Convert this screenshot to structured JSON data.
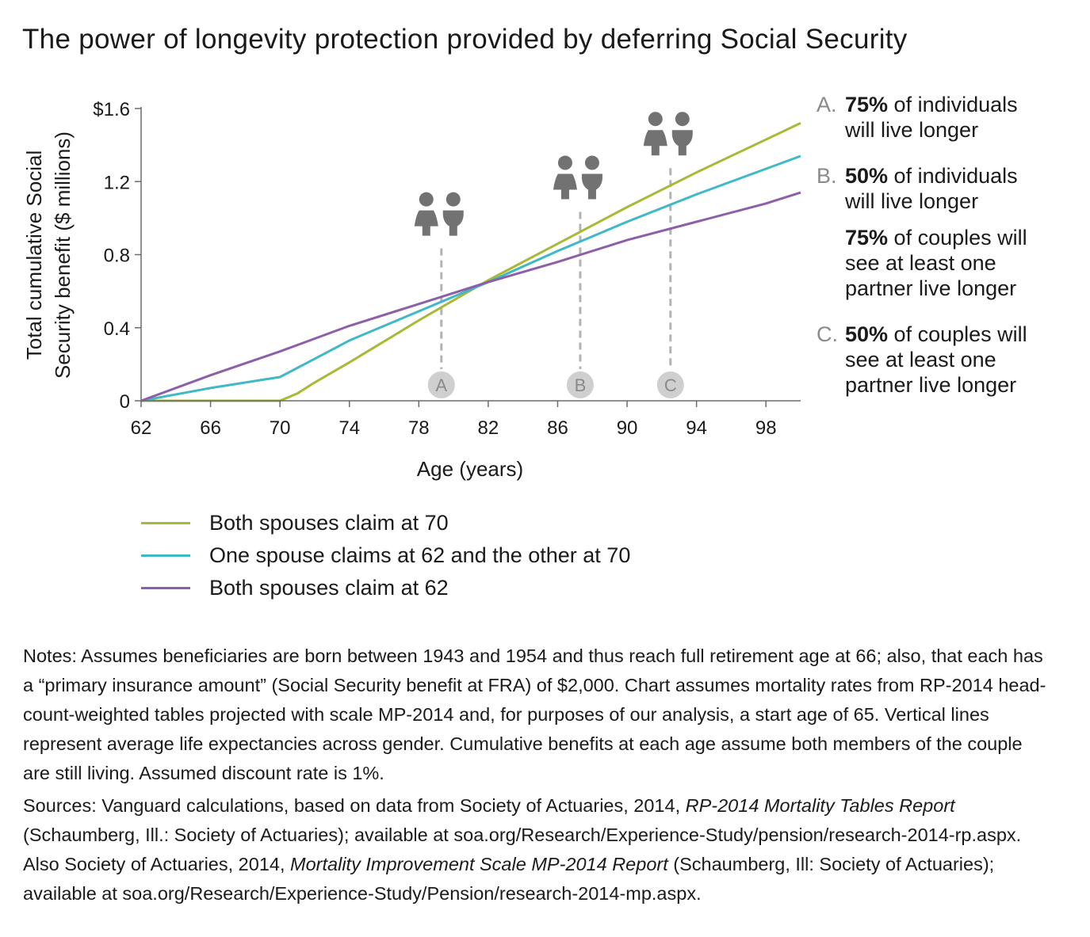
{
  "title": "The power of longevity protection provided by deferring Social Security",
  "colors": {
    "both_70": "#a9b934",
    "one_62_other_70": "#3fb8c7",
    "both_62": "#8d5fa8",
    "marker_gray": "#b3b3b3",
    "icon_gray": "#727272"
  },
  "chart_data": {
    "type": "line",
    "title": "The power of longevity protection provided by deferring Social Security",
    "xlabel": "Age (years)",
    "ylabel": "Total cumulative Social Security benefit ($ millions)",
    "ylabel_lines": [
      "Total cumulative Social",
      "Security benefit ($ millions)"
    ],
    "xlim": [
      62,
      100
    ],
    "ylim": [
      0,
      1.6
    ],
    "x_ticks": [
      62,
      66,
      70,
      74,
      78,
      82,
      86,
      90,
      94,
      98
    ],
    "x_tick_labels": [
      "62",
      "66",
      "70",
      "74",
      "78",
      "82",
      "86",
      "90",
      "94",
      "98"
    ],
    "y_ticks": [
      0,
      0.4,
      0.8,
      1.2,
      1.6
    ],
    "y_tick_labels": [
      "0",
      "0.4",
      "0.8",
      "1.2",
      "$1.6"
    ],
    "grid": false,
    "legend_position": "below",
    "series": [
      {
        "name": "Both spouses claim at 70",
        "color_key": "both_70",
        "points": [
          [
            62,
            0
          ],
          [
            70,
            0
          ],
          [
            71,
            0.04
          ],
          [
            72,
            0.1
          ],
          [
            74,
            0.21
          ],
          [
            78,
            0.44
          ],
          [
            82,
            0.66
          ],
          [
            86,
            0.86
          ],
          [
            90,
            1.06
          ],
          [
            94,
            1.25
          ],
          [
            98,
            1.43
          ],
          [
            100,
            1.52
          ]
        ]
      },
      {
        "name": "One spouse claims at 62 and the other at 70",
        "color_key": "one_62_other_70",
        "points": [
          [
            62,
            0
          ],
          [
            66,
            0.07
          ],
          [
            70,
            0.13
          ],
          [
            71,
            0.18
          ],
          [
            74,
            0.33
          ],
          [
            78,
            0.49
          ],
          [
            82,
            0.65
          ],
          [
            86,
            0.82
          ],
          [
            90,
            0.98
          ],
          [
            94,
            1.13
          ],
          [
            98,
            1.27
          ],
          [
            100,
            1.34
          ]
        ]
      },
      {
        "name": "Both spouses claim at 62",
        "color_key": "both_62",
        "points": [
          [
            62,
            0
          ],
          [
            66,
            0.14
          ],
          [
            70,
            0.27
          ],
          [
            74,
            0.41
          ],
          [
            78,
            0.53
          ],
          [
            82,
            0.65
          ],
          [
            86,
            0.76
          ],
          [
            90,
            0.88
          ],
          [
            94,
            0.98
          ],
          [
            98,
            1.08
          ],
          [
            100,
            1.14
          ]
        ]
      }
    ],
    "markers": [
      {
        "label": "A",
        "age": 79.3,
        "top": 0.86
      },
      {
        "label": "B",
        "age": 87.3,
        "top": 1.06
      },
      {
        "label": "C",
        "age": 92.5,
        "top": 1.3
      }
    ]
  },
  "annotations": [
    {
      "letter": "A.",
      "pct": "75%",
      "lines": [
        "of individuals",
        "will live longer"
      ]
    },
    {
      "letter": "B.",
      "pct": "50%",
      "lines": [
        "of individuals",
        "will live longer"
      ]
    },
    {
      "letter": "",
      "pct": "75%",
      "lines": [
        "of couples will",
        "see at least one",
        "partner live longer"
      ]
    },
    {
      "letter": "C.",
      "pct": "50%",
      "lines": [
        "of couples will",
        "see at least one",
        "partner live longer"
      ]
    }
  ],
  "notes": {
    "label": "Notes:",
    "text": "Assumes beneficiaries are born between 1943 and 1954 and thus reach full retirement age at 66; also, that each has a “primary insurance amount” (Social Security benefit at FRA) of $2,000. Chart assumes mortality rates from RP-2014 head-count-weighted tables projected with scale MP-2014 and, for purposes of our analysis, a start age of 65. Vertical lines represent average life expectancies across gender. Cumulative benefits at each age assume both members of the couple are still living. Assumed discount rate is 1%."
  },
  "sources": {
    "label": "Sources:",
    "part1": "Vanguard calculations, based on data from Society of Actuaries, 2014,",
    "italic1": "RP-2014 Mortality Tables Report",
    "part2": "(Schaumberg, Ill.: Society of Actuaries); available at soa.org/Research/Experience-Study/pension/research-2014-rp.aspx. Also Society of Actuaries, 2014,",
    "italic2": "Mortality Improvement Scale MP-2014 Report",
    "part3": "(Schaumberg, Ill: Society of Actuaries); available at soa.org/Research/Experience-Study/Pension/research-2014-mp.aspx."
  }
}
